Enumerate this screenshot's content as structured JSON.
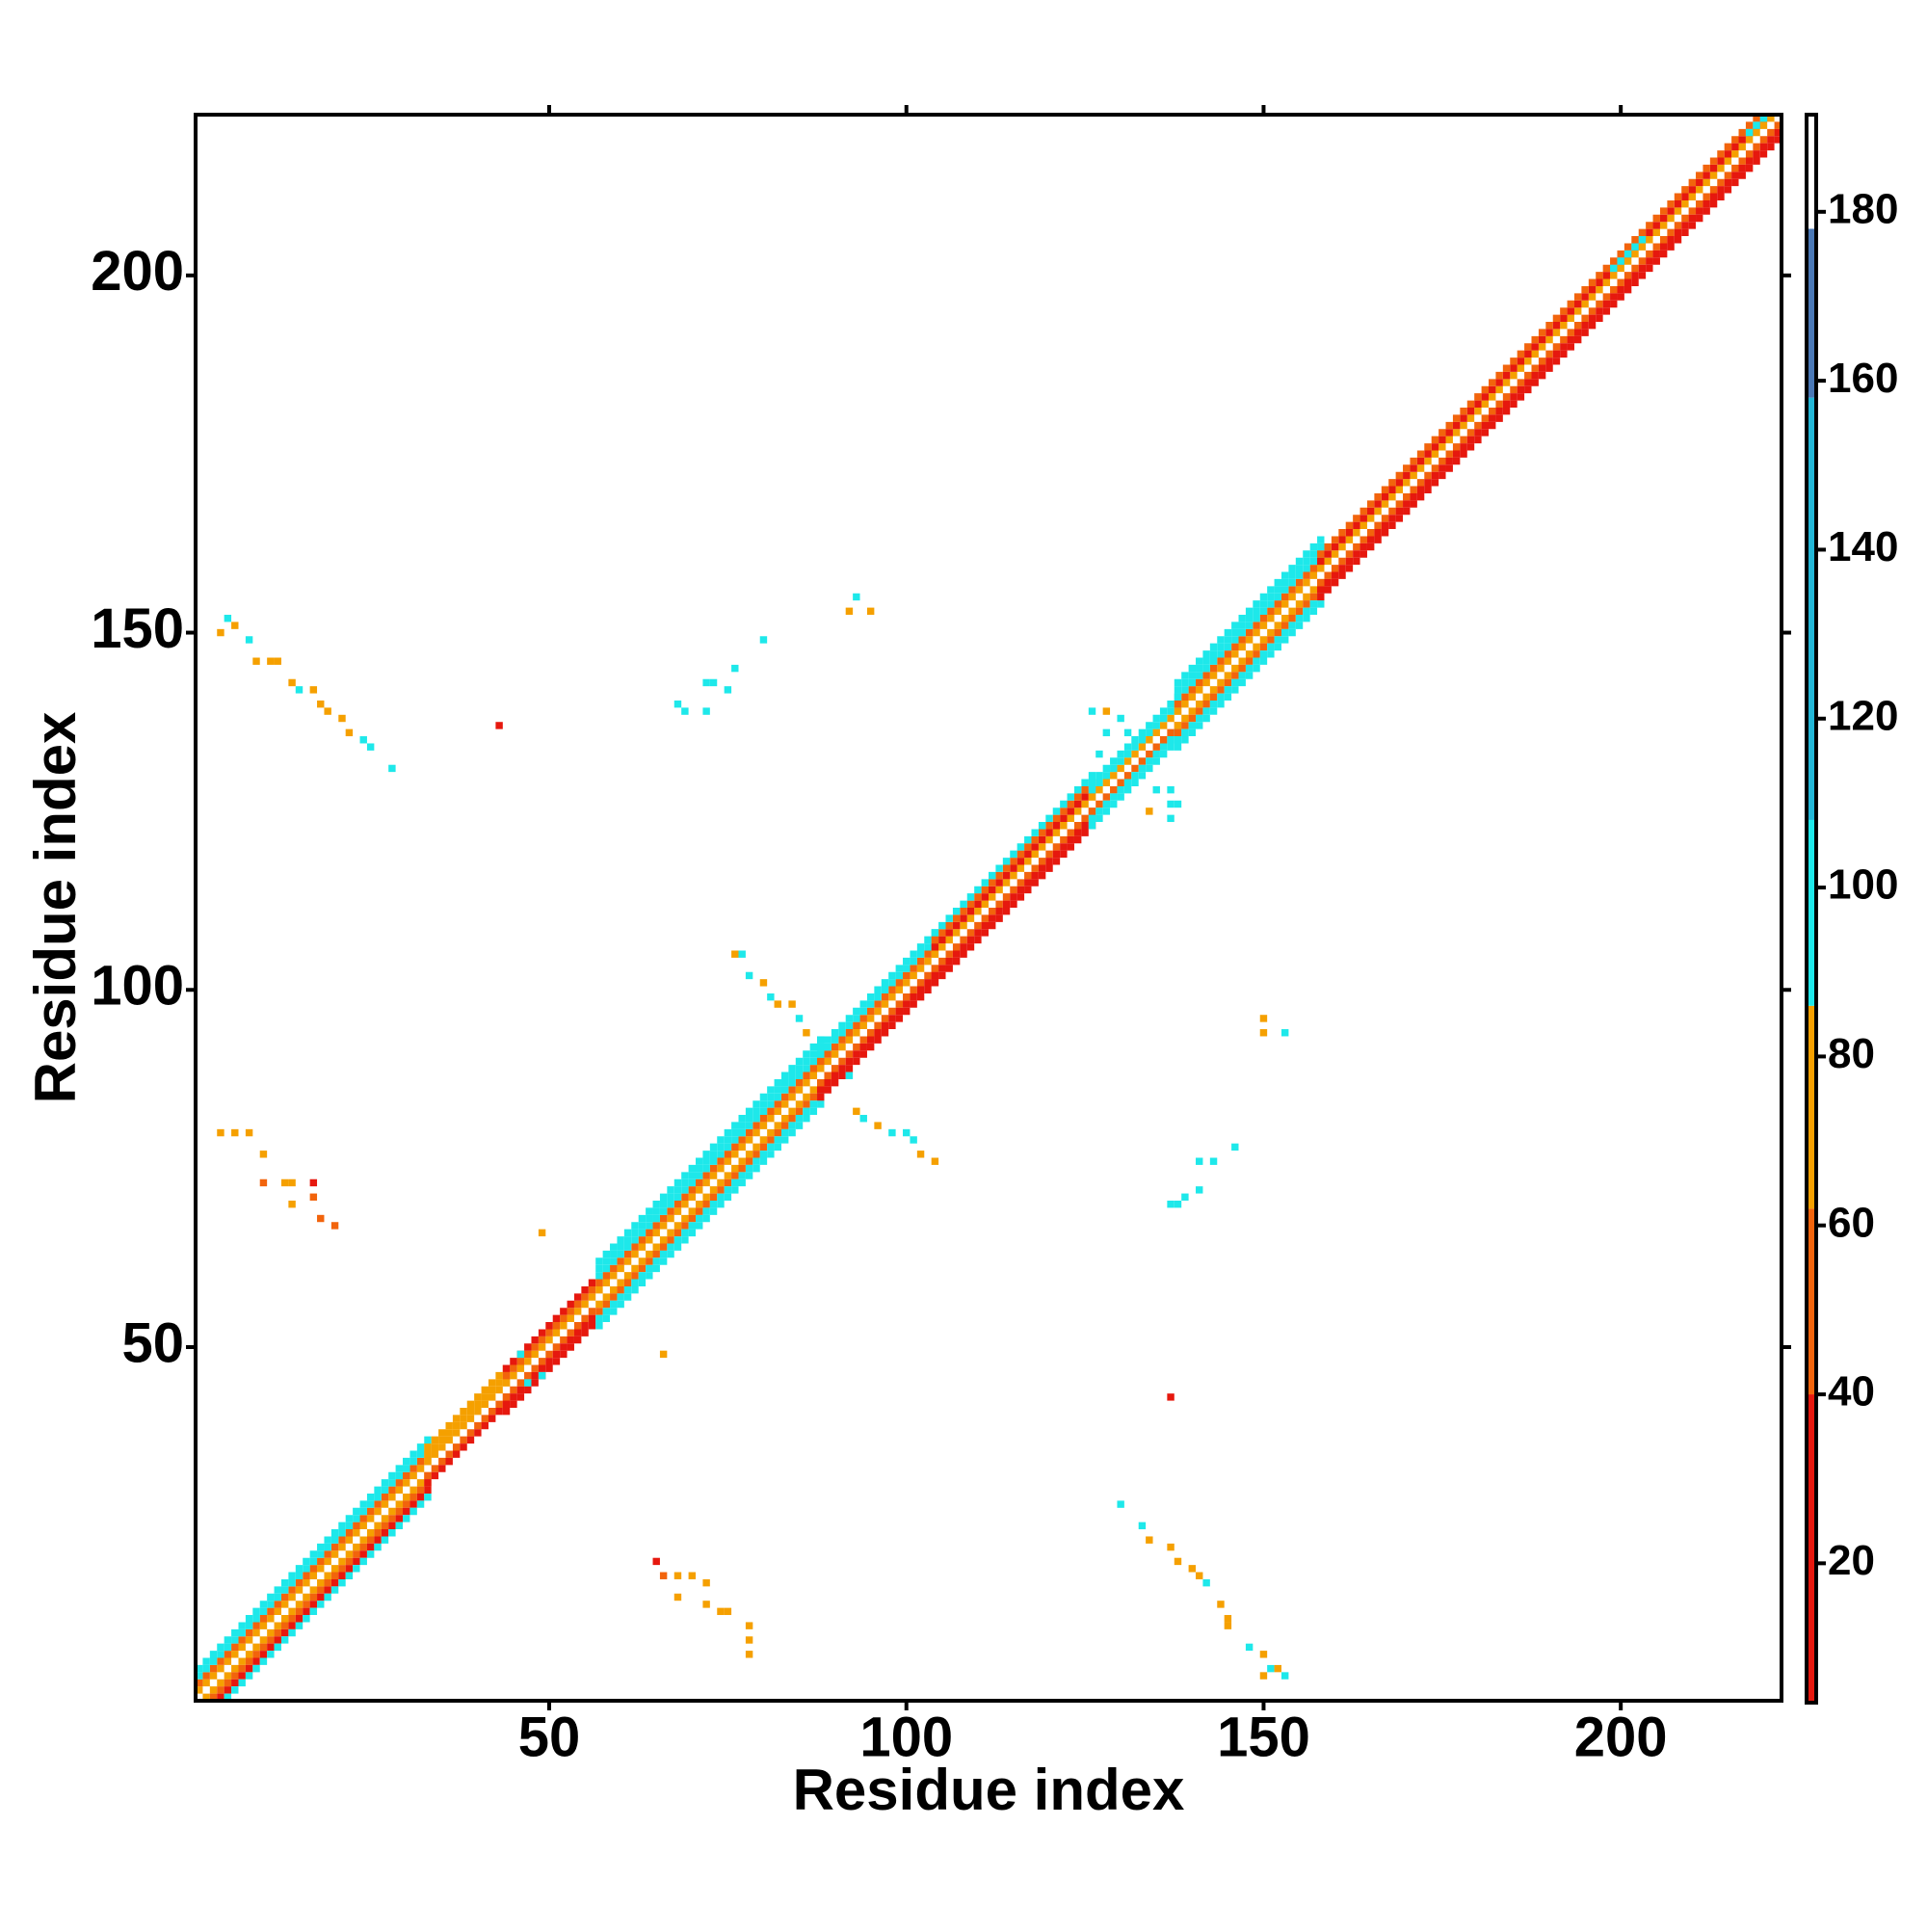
{
  "chart_data": {
    "type": "heatmap",
    "xlabel": "Residue index",
    "ylabel": "Residue index",
    "xlim": [
      0.5,
      222.5
    ],
    "ylim": [
      0.5,
      222.5
    ],
    "xticks": [
      50,
      100,
      150,
      200
    ],
    "yticks": [
      50,
      100,
      150,
      200
    ],
    "clim": [
      3.5,
      191.5
    ],
    "cticks": [
      20,
      40,
      60,
      80,
      100,
      120,
      140,
      160,
      180
    ],
    "colorscale": [
      {
        "from": 3.5,
        "to": 40,
        "color": "#e6180e"
      },
      {
        "from": 40,
        "to": 62,
        "color": "#f2640c"
      },
      {
        "from": 62,
        "to": 86,
        "color": "#f5a000"
      },
      {
        "from": 86,
        "to": 108,
        "color": "#1ee8ea"
      },
      {
        "from": 108,
        "to": 158,
        "color": "#22b6d6"
      },
      {
        "from": 158,
        "to": 178,
        "color": "#4a78b6"
      },
      {
        "from": 178,
        "to": 191.5,
        "color": "#ffffff"
      }
    ],
    "bands": [
      {
        "from": 1,
        "to": 33,
        "offset": 1,
        "value": 75
      },
      {
        "from": 1,
        "to": 33,
        "offset": 2,
        "value": 55
      },
      {
        "from": 1,
        "to": 33,
        "offset": 3,
        "value": 92
      },
      {
        "from": 1,
        "to": 33,
        "offset": 4,
        "value": 95
      },
      {
        "from": 1,
        "to": 33,
        "offset": -1,
        "value": 72
      },
      {
        "from": 1,
        "to": 33,
        "offset": -2,
        "value": 50
      },
      {
        "from": 1,
        "to": 33,
        "offset": -3,
        "value": 30
      },
      {
        "from": 1,
        "to": 33,
        "offset": -4,
        "value": 95
      },
      {
        "from": 33,
        "to": 44,
        "offset": 1,
        "value": 75
      },
      {
        "from": 33,
        "to": 44,
        "offset": 2,
        "value": 72
      },
      {
        "from": 33,
        "to": 44,
        "offset": 3,
        "value": 70
      },
      {
        "from": 33,
        "to": 44,
        "offset": -1,
        "value": 60
      },
      {
        "from": 33,
        "to": 44,
        "offset": -2,
        "value": 30
      },
      {
        "from": 44,
        "to": 56,
        "offset": 1,
        "value": 75
      },
      {
        "from": 44,
        "to": 56,
        "offset": 2,
        "value": 55
      },
      {
        "from": 44,
        "to": 56,
        "offset": 3,
        "value": 30
      },
      {
        "from": 44,
        "to": 56,
        "offset": -1,
        "value": 60
      },
      {
        "from": 44,
        "to": 56,
        "offset": -2,
        "value": 30
      },
      {
        "from": 44,
        "to": 56,
        "offset": -3,
        "value": 30
      },
      {
        "from": 57,
        "to": 88,
        "offset": 1,
        "value": 75
      },
      {
        "from": 57,
        "to": 88,
        "offset": 2,
        "value": 55
      },
      {
        "from": 57,
        "to": 88,
        "offset": 3,
        "value": 95
      },
      {
        "from": 57,
        "to": 88,
        "offset": 4,
        "value": 95
      },
      {
        "from": 57,
        "to": 88,
        "offset": 5,
        "value": 95
      },
      {
        "from": 57,
        "to": 88,
        "offset": -1,
        "value": 72
      },
      {
        "from": 57,
        "to": 88,
        "offset": -2,
        "value": 50
      },
      {
        "from": 57,
        "to": 88,
        "offset": -3,
        "value": 95
      },
      {
        "from": 57,
        "to": 88,
        "offset": -4,
        "value": 95
      },
      {
        "from": 88,
        "to": 104,
        "offset": 1,
        "value": 75
      },
      {
        "from": 88,
        "to": 104,
        "offset": 2,
        "value": 55
      },
      {
        "from": 88,
        "to": 104,
        "offset": 3,
        "value": 95
      },
      {
        "from": 88,
        "to": 104,
        "offset": 4,
        "value": 95
      },
      {
        "from": 88,
        "to": 104,
        "offset": -1,
        "value": 60
      },
      {
        "from": 88,
        "to": 104,
        "offset": -2,
        "value": 30
      },
      {
        "from": 88,
        "to": 104,
        "offset": -3,
        "value": 30
      },
      {
        "from": 104,
        "to": 126,
        "offset": 1,
        "value": 75
      },
      {
        "from": 104,
        "to": 126,
        "offset": 2,
        "value": 30
      },
      {
        "from": 104,
        "to": 126,
        "offset": 3,
        "value": 60
      },
      {
        "from": 104,
        "to": 126,
        "offset": 4,
        "value": 95
      },
      {
        "from": 104,
        "to": 126,
        "offset": -1,
        "value": 60
      },
      {
        "from": 104,
        "to": 126,
        "offset": -2,
        "value": 30
      },
      {
        "from": 104,
        "to": 126,
        "offset": -3,
        "value": 30
      },
      {
        "from": 126,
        "to": 138,
        "offset": 1,
        "value": 75
      },
      {
        "from": 126,
        "to": 138,
        "offset": 2,
        "value": 95
      },
      {
        "from": 126,
        "to": 138,
        "offset": 3,
        "value": 95
      },
      {
        "from": 126,
        "to": 138,
        "offset": -1,
        "value": 60
      },
      {
        "from": 126,
        "to": 138,
        "offset": -2,
        "value": 95
      },
      {
        "from": 126,
        "to": 138,
        "offset": -3,
        "value": 95
      },
      {
        "from": 138,
        "to": 158,
        "offset": 1,
        "value": 75
      },
      {
        "from": 138,
        "to": 158,
        "offset": 2,
        "value": 55
      },
      {
        "from": 138,
        "to": 158,
        "offset": 3,
        "value": 95
      },
      {
        "from": 138,
        "to": 158,
        "offset": 4,
        "value": 95
      },
      {
        "from": 138,
        "to": 158,
        "offset": 5,
        "value": 95
      },
      {
        "from": 138,
        "to": 158,
        "offset": -1,
        "value": 72
      },
      {
        "from": 138,
        "to": 158,
        "offset": -2,
        "value": 50
      },
      {
        "from": 138,
        "to": 158,
        "offset": -3,
        "value": 95
      },
      {
        "from": 138,
        "to": 158,
        "offset": -4,
        "value": 95
      },
      {
        "from": 158,
        "to": 222,
        "offset": 1,
        "value": 75
      },
      {
        "from": 158,
        "to": 222,
        "offset": 2,
        "value": 30
      },
      {
        "from": 158,
        "to": 222,
        "offset": 3,
        "value": 60
      },
      {
        "from": 158,
        "to": 222,
        "offset": -1,
        "value": 60
      },
      {
        "from": 158,
        "to": 222,
        "offset": -2,
        "value": 30
      },
      {
        "from": 158,
        "to": 222,
        "offset": -3,
        "value": 30
      },
      {
        "from": 199,
        "to": 203,
        "offset": 2,
        "value": 95
      },
      {
        "from": 218,
        "to": 222,
        "offset": 2,
        "value": 95
      }
    ],
    "cells": [
      {
        "x": 4,
        "y": 150,
        "value": 70
      },
      {
        "x": 5,
        "y": 152,
        "value": 95
      },
      {
        "x": 6,
        "y": 151,
        "value": 70
      },
      {
        "x": 8,
        "y": 149,
        "value": 95
      },
      {
        "x": 9,
        "y": 146,
        "value": 70
      },
      {
        "x": 11,
        "y": 146,
        "value": 70
      },
      {
        "x": 12,
        "y": 146,
        "value": 70
      },
      {
        "x": 14,
        "y": 143,
        "value": 70
      },
      {
        "x": 15,
        "y": 142,
        "value": 95
      },
      {
        "x": 17,
        "y": 142,
        "value": 70
      },
      {
        "x": 18,
        "y": 140,
        "value": 70
      },
      {
        "x": 19,
        "y": 139,
        "value": 70
      },
      {
        "x": 21,
        "y": 138,
        "value": 70
      },
      {
        "x": 22,
        "y": 136,
        "value": 70
      },
      {
        "x": 24,
        "y": 135,
        "value": 95
      },
      {
        "x": 25,
        "y": 134,
        "value": 95
      },
      {
        "x": 28,
        "y": 131,
        "value": 95
      },
      {
        "x": 130,
        "y": 28,
        "value": 95
      },
      {
        "x": 133,
        "y": 25,
        "value": 95
      },
      {
        "x": 134,
        "y": 23,
        "value": 70
      },
      {
        "x": 137,
        "y": 22,
        "value": 70
      },
      {
        "x": 138,
        "y": 20,
        "value": 70
      },
      {
        "x": 140,
        "y": 19,
        "value": 70
      },
      {
        "x": 141,
        "y": 18,
        "value": 70
      },
      {
        "x": 142,
        "y": 17,
        "value": 95
      },
      {
        "x": 144,
        "y": 14,
        "value": 70
      },
      {
        "x": 145,
        "y": 12,
        "value": 70
      },
      {
        "x": 145,
        "y": 11,
        "value": 70
      },
      {
        "x": 148,
        "y": 8,
        "value": 95
      },
      {
        "x": 150,
        "y": 7,
        "value": 70
      },
      {
        "x": 151,
        "y": 5,
        "value": 95
      },
      {
        "x": 152,
        "y": 5,
        "value": 70
      },
      {
        "x": 150,
        "y": 4,
        "value": 70
      },
      {
        "x": 153,
        "y": 4,
        "value": 95
      },
      {
        "x": 4,
        "y": 80,
        "value": 70
      },
      {
        "x": 6,
        "y": 80,
        "value": 70
      },
      {
        "x": 8,
        "y": 80,
        "value": 70
      },
      {
        "x": 10,
        "y": 77,
        "value": 70
      },
      {
        "x": 10,
        "y": 73,
        "value": 60
      },
      {
        "x": 13,
        "y": 73,
        "value": 70
      },
      {
        "x": 14,
        "y": 73,
        "value": 70
      },
      {
        "x": 17,
        "y": 73,
        "value": 30
      },
      {
        "x": 17,
        "y": 71,
        "value": 60
      },
      {
        "x": 14,
        "y": 70,
        "value": 70
      },
      {
        "x": 18,
        "y": 68,
        "value": 60
      },
      {
        "x": 20,
        "y": 67,
        "value": 60
      },
      {
        "x": 65,
        "y": 20,
        "value": 30
      },
      {
        "x": 66,
        "y": 18,
        "value": 60
      },
      {
        "x": 68,
        "y": 18,
        "value": 70
      },
      {
        "x": 70,
        "y": 18,
        "value": 70
      },
      {
        "x": 72,
        "y": 17,
        "value": 70
      },
      {
        "x": 68,
        "y": 15,
        "value": 70
      },
      {
        "x": 72,
        "y": 14,
        "value": 70
      },
      {
        "x": 74,
        "y": 13,
        "value": 70
      },
      {
        "x": 75,
        "y": 13,
        "value": 70
      },
      {
        "x": 78,
        "y": 11,
        "value": 70
      },
      {
        "x": 78,
        "y": 9,
        "value": 70
      },
      {
        "x": 78,
        "y": 7,
        "value": 70
      },
      {
        "x": 93,
        "y": 155,
        "value": 95
      },
      {
        "x": 92,
        "y": 153,
        "value": 70
      },
      {
        "x": 95,
        "y": 153,
        "value": 70
      },
      {
        "x": 80,
        "y": 149,
        "value": 95
      },
      {
        "x": 76,
        "y": 145,
        "value": 95
      },
      {
        "x": 72,
        "y": 143,
        "value": 95
      },
      {
        "x": 73,
        "y": 143,
        "value": 95
      },
      {
        "x": 75,
        "y": 142,
        "value": 95
      },
      {
        "x": 68,
        "y": 140,
        "value": 95
      },
      {
        "x": 69,
        "y": 139,
        "value": 95
      },
      {
        "x": 72,
        "y": 139,
        "value": 95
      },
      {
        "x": 137,
        "y": 70,
        "value": 95
      },
      {
        "x": 138,
        "y": 70,
        "value": 95
      },
      {
        "x": 139,
        "y": 71,
        "value": 95
      },
      {
        "x": 141,
        "y": 72,
        "value": 95
      },
      {
        "x": 141,
        "y": 76,
        "value": 95
      },
      {
        "x": 143,
        "y": 76,
        "value": 95
      },
      {
        "x": 146,
        "y": 78,
        "value": 95
      },
      {
        "x": 150,
        "y": 96,
        "value": 70
      },
      {
        "x": 150,
        "y": 94,
        "value": 70
      },
      {
        "x": 153,
        "y": 94,
        "value": 95
      },
      {
        "x": 43,
        "y": 137,
        "value": 30
      },
      {
        "x": 137,
        "y": 43,
        "value": 30
      },
      {
        "x": 49,
        "y": 66,
        "value": 70
      },
      {
        "x": 66,
        "y": 49,
        "value": 70
      },
      {
        "x": 76,
        "y": 105,
        "value": 70
      },
      {
        "x": 77,
        "y": 105,
        "value": 95
      },
      {
        "x": 78,
        "y": 102,
        "value": 95
      },
      {
        "x": 80,
        "y": 101,
        "value": 70
      },
      {
        "x": 81,
        "y": 99,
        "value": 95
      },
      {
        "x": 82,
        "y": 98,
        "value": 70
      },
      {
        "x": 84,
        "y": 98,
        "value": 70
      },
      {
        "x": 85,
        "y": 96,
        "value": 95
      },
      {
        "x": 86,
        "y": 94,
        "value": 70
      },
      {
        "x": 88,
        "y": 93,
        "value": 95
      },
      {
        "x": 89,
        "y": 92,
        "value": 95
      },
      {
        "x": 92,
        "y": 88,
        "value": 95
      },
      {
        "x": 93,
        "y": 83,
        "value": 70
      },
      {
        "x": 94,
        "y": 82,
        "value": 95
      },
      {
        "x": 96,
        "y": 81,
        "value": 70
      },
      {
        "x": 98,
        "y": 80,
        "value": 95
      },
      {
        "x": 100,
        "y": 80,
        "value": 95
      },
      {
        "x": 101,
        "y": 79,
        "value": 95
      },
      {
        "x": 102,
        "y": 77,
        "value": 70
      },
      {
        "x": 104,
        "y": 76,
        "value": 70
      },
      {
        "x": 126,
        "y": 139,
        "value": 95
      },
      {
        "x": 128,
        "y": 139,
        "value": 70
      },
      {
        "x": 130,
        "y": 138,
        "value": 95
      },
      {
        "x": 128,
        "y": 136,
        "value": 95
      },
      {
        "x": 131,
        "y": 136,
        "value": 95
      },
      {
        "x": 127,
        "y": 133,
        "value": 95
      },
      {
        "x": 135,
        "y": 128,
        "value": 95
      },
      {
        "x": 137,
        "y": 128,
        "value": 95
      },
      {
        "x": 137,
        "y": 126,
        "value": 95
      },
      {
        "x": 138,
        "y": 126,
        "value": 95
      },
      {
        "x": 134,
        "y": 125,
        "value": 70
      },
      {
        "x": 137,
        "y": 124,
        "value": 95
      },
      {
        "x": 46,
        "y": 49,
        "value": 95
      },
      {
        "x": 47,
        "y": 45,
        "value": 95
      },
      {
        "x": 49,
        "y": 46,
        "value": 95
      }
    ]
  }
}
